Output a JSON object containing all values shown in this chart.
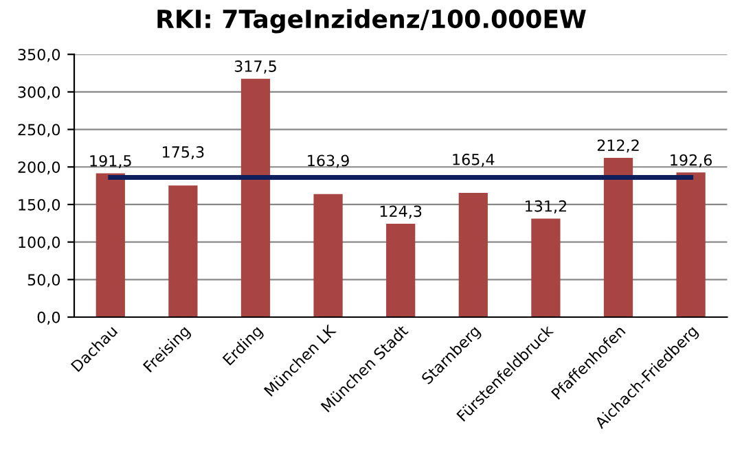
{
  "chart_data": {
    "type": "bar",
    "title": "RKI: 7TageInzidenz/100.000EW",
    "categories": [
      "Dachau",
      "Freising",
      "Erding",
      "München LK",
      "München Stadt",
      "Starnberg",
      "Fürstenfeldbruck",
      "Pfaffenhofen",
      "Aichach-Friedberg"
    ],
    "series": [
      {
        "color": "#a84442",
        "values": [
          191.5,
          175.3,
          317.5,
          163.9,
          124.3,
          165.4,
          131.2,
          212.2,
          192.6
        ],
        "value_labels": [
          "191,5",
          "175,3",
          "317,5",
          "163,9",
          "124,3",
          "165,4",
          "131,2",
          "212,2",
          "192,6"
        ]
      },
      {
        "type": "line",
        "color": "#0e1f5b",
        "values": [
          186,
          186,
          186,
          186,
          186,
          186,
          186,
          186,
          186
        ]
      }
    ],
    "ylim": [
      0,
      350
    ],
    "yticks": [
      {
        "value": 0,
        "label": "0,0"
      },
      {
        "value": 50,
        "label": "50,0"
      },
      {
        "value": 100,
        "label": "100,0"
      },
      {
        "value": 150,
        "label": "150,0"
      },
      {
        "value": 200,
        "label": "200,0"
      },
      {
        "value": 250,
        "label": "250,0"
      },
      {
        "value": 300,
        "label": "300,0"
      },
      {
        "value": 350,
        "label": "350,0"
      }
    ],
    "grid": "y",
    "legend": false,
    "marker": "none",
    "line_style": "solid"
  }
}
